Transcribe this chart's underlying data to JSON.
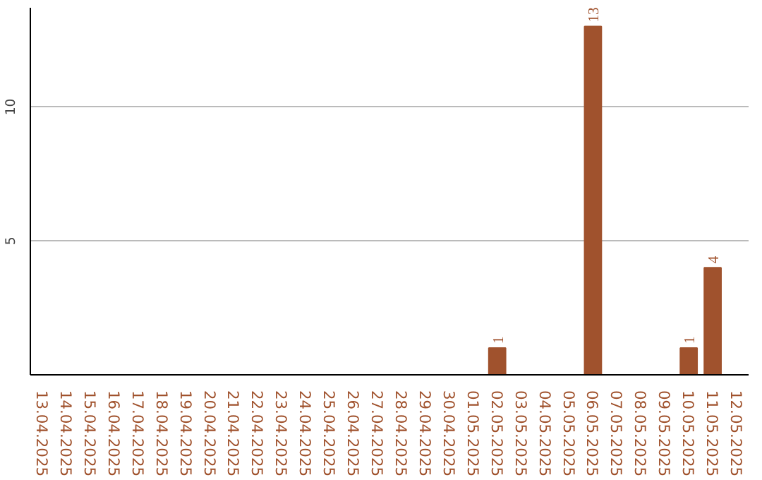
{
  "chart_data": {
    "type": "bar",
    "categories": [
      "13.04.2025",
      "14.04.2025",
      "15.04.2025",
      "16.04.2025",
      "17.04.2025",
      "18.04.2025",
      "19.04.2025",
      "20.04.2025",
      "21.04.2025",
      "22.04.2025",
      "23.04.2025",
      "24.04.2025",
      "25.04.2025",
      "26.04.2025",
      "27.04.2025",
      "28.04.2025",
      "29.04.2025",
      "30.04.2025",
      "01.05.2025",
      "02.05.2025",
      "03.05.2025",
      "04.05.2025",
      "05.05.2025",
      "06.05.2025",
      "07.05.2025",
      "08.05.2025",
      "09.05.2025",
      "10.05.2025",
      "11.05.2025",
      "12.05.2025"
    ],
    "values": [
      0,
      0,
      0,
      0,
      0,
      0,
      0,
      0,
      0,
      0,
      0,
      0,
      0,
      0,
      0,
      0,
      0,
      0,
      0,
      1,
      0,
      0,
      0,
      13,
      0,
      0,
      0,
      1,
      4,
      0
    ],
    "value_labels": [
      null,
      null,
      null,
      null,
      null,
      null,
      null,
      null,
      null,
      null,
      null,
      null,
      null,
      null,
      null,
      null,
      null,
      null,
      null,
      "1",
      null,
      null,
      null,
      "13",
      null,
      null,
      null,
      "1",
      "4",
      null
    ],
    "color": "#a0522d",
    "ylim": [
      0,
      13.7
    ],
    "yticks": [
      5,
      10
    ],
    "grid": "y"
  }
}
